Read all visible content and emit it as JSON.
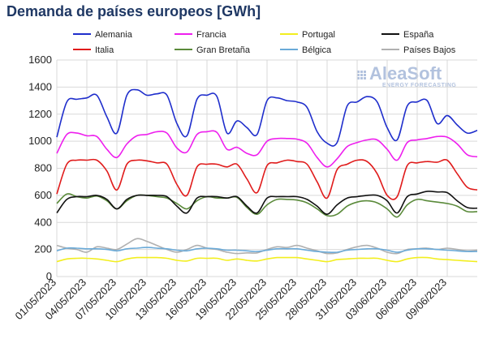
{
  "chart_data": {
    "type": "line",
    "title": "Demanda de países europeos [GWh]",
    "xlabel": "",
    "ylabel": "",
    "ylim": [
      0,
      1600
    ],
    "yticks": [
      0,
      200,
      400,
      600,
      800,
      1000,
      1200,
      1400,
      1600
    ],
    "x_start": "01/05/2023",
    "x_end": "12/06/2023",
    "xtick_labels": [
      "01/05/2023",
      "04/05/2023",
      "07/05/2023",
      "10/05/2023",
      "13/05/2023",
      "16/05/2023",
      "19/05/2023",
      "22/05/2023",
      "25/05/2023",
      "28/05/2023",
      "31/05/2023",
      "03/06/2023",
      "06/06/2023",
      "09/06/2023"
    ],
    "grid": true,
    "legend_position": "top",
    "watermark": {
      "name": "AleaSoft",
      "subtitle": "ENERGY FORECASTING"
    },
    "x": [
      "01/05/2023",
      "02/05/2023",
      "03/05/2023",
      "04/05/2023",
      "05/05/2023",
      "06/05/2023",
      "07/05/2023",
      "08/05/2023",
      "09/05/2023",
      "10/05/2023",
      "11/05/2023",
      "12/05/2023",
      "13/05/2023",
      "14/05/2023",
      "15/05/2023",
      "16/05/2023",
      "17/05/2023",
      "18/05/2023",
      "19/05/2023",
      "20/05/2023",
      "21/05/2023",
      "22/05/2023",
      "23/05/2023",
      "24/05/2023",
      "25/05/2023",
      "26/05/2023",
      "27/05/2023",
      "28/05/2023",
      "29/05/2023",
      "30/05/2023",
      "31/05/2023",
      "01/06/2023",
      "02/06/2023",
      "03/06/2023",
      "04/06/2023",
      "05/06/2023",
      "06/06/2023",
      "07/06/2023",
      "08/06/2023",
      "09/06/2023",
      "10/06/2023",
      "11/06/2023",
      "12/06/2023"
    ],
    "series": [
      {
        "name": "Alemania",
        "color": "#1f2ecc",
        "values": [
          1030,
          1290,
          1310,
          1320,
          1340,
          1180,
          1060,
          1340,
          1380,
          1340,
          1350,
          1340,
          1130,
          1040,
          1310,
          1340,
          1330,
          1060,
          1150,
          1100,
          1050,
          1300,
          1320,
          1300,
          1290,
          1250,
          1070,
          985,
          990,
          1260,
          1290,
          1330,
          1290,
          1100,
          1010,
          1260,
          1290,
          1300,
          1130,
          1190,
          1120,
          1060,
          1080
        ]
      },
      {
        "name": "Francia",
        "color": "#ee1fee",
        "values": [
          910,
          1050,
          1060,
          1040,
          1035,
          940,
          880,
          980,
          1040,
          1050,
          1070,
          1060,
          950,
          920,
          1050,
          1070,
          1065,
          940,
          955,
          910,
          900,
          1000,
          1020,
          1020,
          1015,
          985,
          880,
          810,
          870,
          960,
          990,
          1010,
          1010,
          940,
          860,
          990,
          1010,
          1020,
          1035,
          1030,
          980,
          900,
          885
        ]
      },
      {
        "name": "Portugal",
        "color": "#f2ee1f",
        "values": [
          110,
          130,
          135,
          135,
          130,
          120,
          110,
          130,
          140,
          140,
          140,
          135,
          120,
          115,
          135,
          135,
          135,
          120,
          130,
          120,
          115,
          130,
          140,
          140,
          140,
          130,
          120,
          110,
          125,
          130,
          135,
          135,
          135,
          120,
          110,
          130,
          140,
          140,
          130,
          125,
          120,
          115,
          110
        ]
      },
      {
        "name": "España",
        "color": "#111111",
        "values": [
          470,
          570,
          590,
          590,
          600,
          570,
          500,
          570,
          600,
          600,
          600,
          590,
          520,
          470,
          580,
          590,
          590,
          580,
          590,
          520,
          470,
          580,
          590,
          590,
          590,
          570,
          520,
          460,
          530,
          580,
          590,
          600,
          600,
          560,
          470,
          590,
          610,
          630,
          625,
          620,
          560,
          510,
          505
        ]
      },
      {
        "name": "Italia",
        "color": "#e01b1b",
        "values": [
          610,
          830,
          860,
          860,
          860,
          780,
          640,
          830,
          860,
          855,
          840,
          830,
          680,
          600,
          810,
          830,
          830,
          810,
          830,
          720,
          620,
          820,
          840,
          860,
          850,
          830,
          700,
          580,
          790,
          830,
          860,
          850,
          760,
          600,
          590,
          820,
          840,
          850,
          845,
          860,
          760,
          660,
          640
        ]
      },
      {
        "name": "Gran Bretaña",
        "color": "#5a8a3a",
        "values": [
          540,
          610,
          590,
          580,
          595,
          560,
          500,
          560,
          600,
          600,
          590,
          580,
          540,
          500,
          560,
          590,
          580,
          580,
          585,
          510,
          460,
          530,
          570,
          570,
          565,
          545,
          500,
          450,
          460,
          520,
          550,
          560,
          545,
          500,
          440,
          530,
          570,
          560,
          550,
          540,
          520,
          480,
          480
        ]
      },
      {
        "name": "Bélgica",
        "color": "#6aaad8",
        "values": [
          190,
          210,
          210,
          205,
          205,
          200,
          190,
          205,
          210,
          215,
          210,
          205,
          195,
          190,
          205,
          210,
          205,
          195,
          195,
          190,
          185,
          195,
          205,
          205,
          205,
          195,
          185,
          180,
          180,
          195,
          200,
          205,
          205,
          195,
          180,
          195,
          205,
          205,
          200,
          195,
          190,
          185,
          185
        ]
      },
      {
        "name": "Países Bajos",
        "color": "#b0b0b0",
        "values": [
          230,
          210,
          200,
          180,
          220,
          210,
          200,
          240,
          280,
          260,
          230,
          200,
          180,
          200,
          230,
          210,
          200,
          180,
          170,
          175,
          175,
          200,
          220,
          215,
          230,
          210,
          190,
          170,
          175,
          200,
          220,
          230,
          210,
          180,
          170,
          200,
          205,
          210,
          200,
          210,
          200,
          190,
          195
        ]
      }
    ]
  }
}
